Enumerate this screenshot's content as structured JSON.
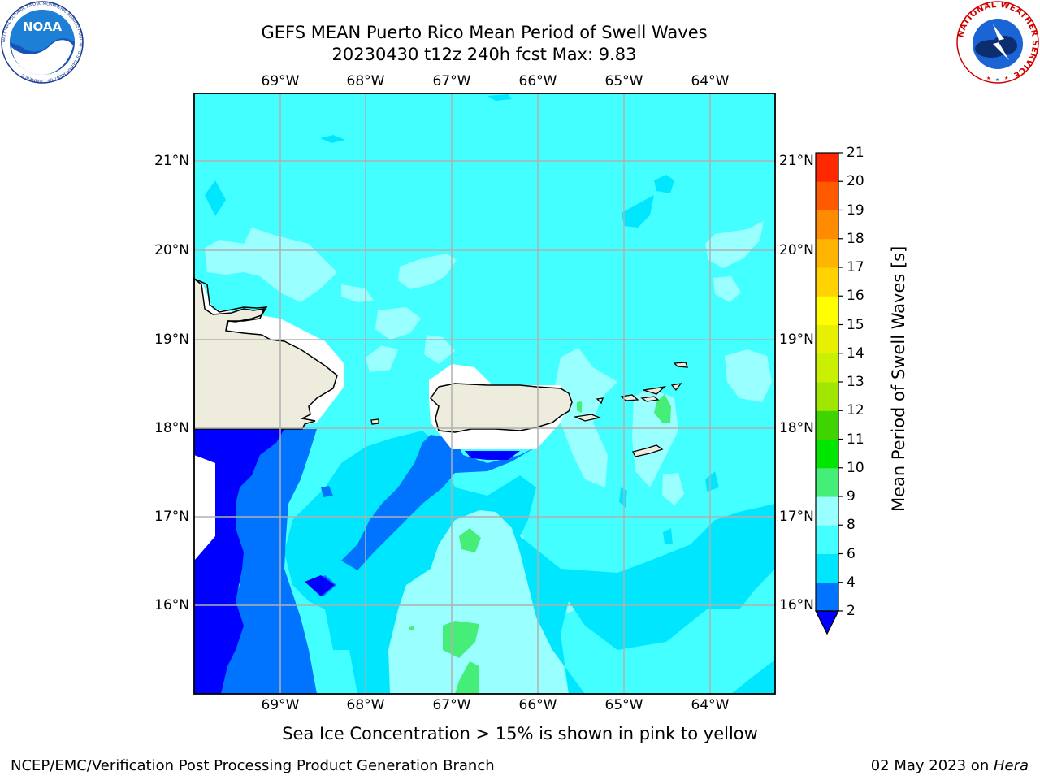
{
  "header": {
    "title_line1": "GEFS MEAN Puerto Rico Mean Period of Swell Waves",
    "title_line2": "20230430 t12z 240h fcst   Max: 9.83"
  },
  "map": {
    "lon_labels": [
      "69°W",
      "68°W",
      "67°W",
      "66°W",
      "65°W",
      "64°W"
    ],
    "lat_labels": [
      "21°N",
      "20°N",
      "19°N",
      "18°N",
      "17°N",
      "16°N"
    ],
    "land_color": "#eeecdd",
    "ocean_base_color": "#44ffff",
    "grid_color": "#b0b0b0"
  },
  "colorbar": {
    "title": "Mean Period of Swell Waves [s]",
    "ticks": [
      "2",
      "4",
      "6",
      "8",
      "9",
      "10",
      "11",
      "12",
      "13",
      "14",
      "15",
      "16",
      "17",
      "18",
      "19",
      "20",
      "21"
    ],
    "colors": [
      "#0073ff",
      "#00e6ff",
      "#44ffff",
      "#99ffff",
      "#44ee77",
      "#00e600",
      "#3fd400",
      "#a0e600",
      "#c8f000",
      "#e6f000",
      "#ffff00",
      "#ffd200",
      "#ffb400",
      "#ff8c00",
      "#ff5a00",
      "#ff2800"
    ],
    "under_color": "#0000ff"
  },
  "footer": {
    "note": "Sea Ice Concentration > 15% is shown in pink to yellow",
    "credit": "NCEP/EMC/Verification Post Processing Product Generation Branch",
    "date_text": "02 May 2023 on ",
    "host": "Hera"
  },
  "logos": {
    "noaa_text": "NOAA",
    "noaa_ring_text": "NATIONAL OCEANIC AND ATMOSPHERIC ADMINISTRATION · U.S. DEPARTMENT OF COMMERCE",
    "nws_ring_text": "NATIONAL WEATHER SERVICE"
  }
}
